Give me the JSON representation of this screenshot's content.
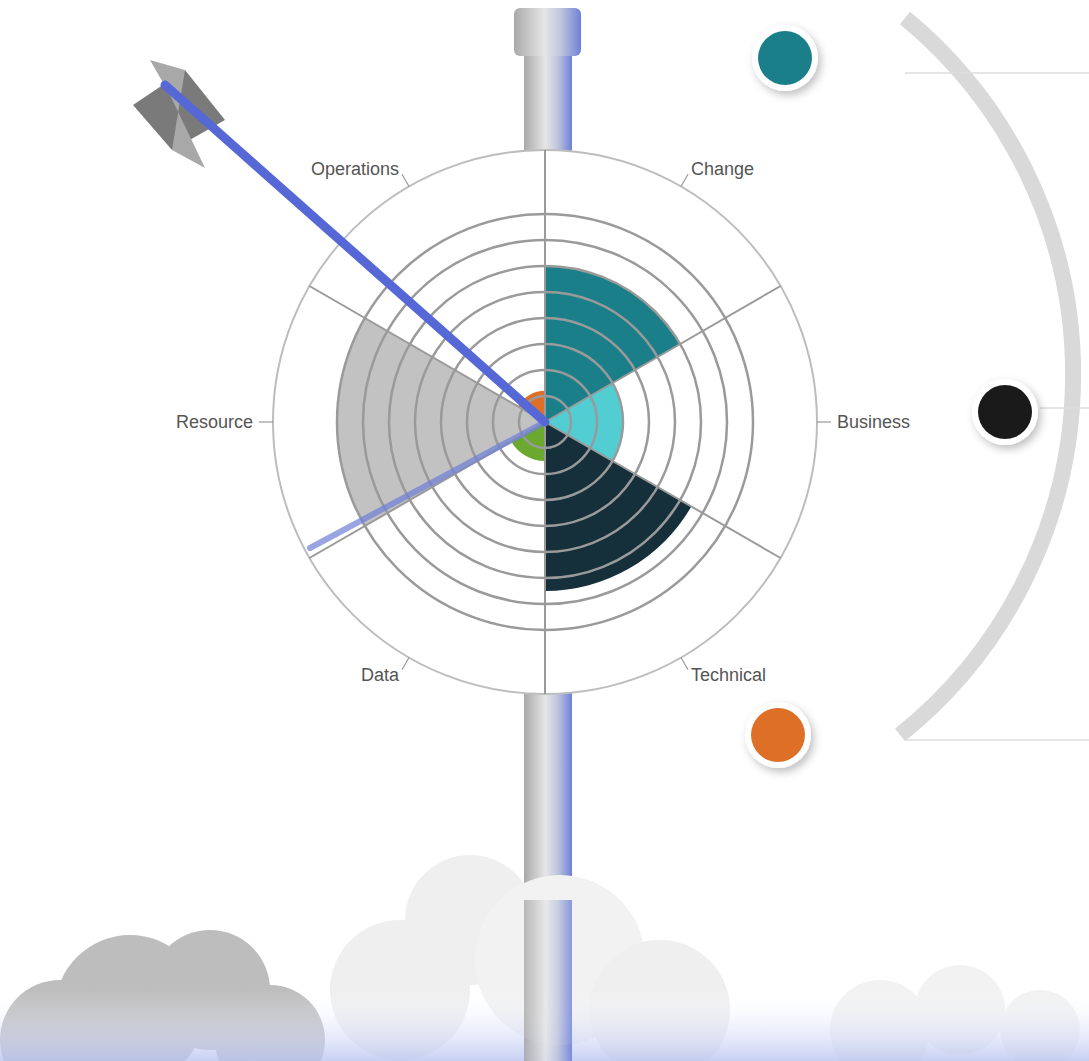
{
  "chart_data": {
    "type": "polar_area",
    "categories": [
      "Change",
      "Business",
      "Technical",
      "Data",
      "Resource",
      "Operations"
    ],
    "values": [
      6,
      3,
      6.5,
      1.5,
      8,
      1.2
    ],
    "colors": [
      "#1b7f89",
      "#52ced3",
      "#15303a",
      "#6aa82e",
      "#c2c2c2",
      "#de6f27"
    ],
    "ylim": [
      0,
      8
    ],
    "yticks": [
      1,
      2,
      3,
      4,
      5,
      6,
      7,
      8
    ],
    "grid": true,
    "tick_labels": false
  }
}
